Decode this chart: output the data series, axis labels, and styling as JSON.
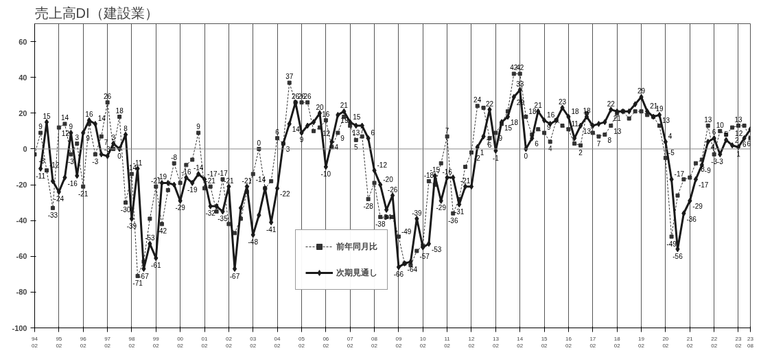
{
  "chart_data": {
    "type": "line",
    "title": "売上高DI（建設業）",
    "x": [
      "1994-02",
      "1994-05",
      "1994-08",
      "1994-11",
      "1995-02",
      "1995-05",
      "1995-08",
      "1995-11",
      "1996-02",
      "1996-05",
      "1996-08",
      "1996-11",
      "1997-02",
      "1997-05",
      "1997-08",
      "1997-11",
      "1998-02",
      "1998-05",
      "1998-08",
      "1998-11",
      "1999-02",
      "1999-05",
      "1999-08",
      "1999-11",
      "2000-02",
      "2000-05",
      "2000-08",
      "2000-11",
      "2001-02",
      "2001-05",
      "2001-08",
      "2001-11",
      "2002-02",
      "2002-05",
      "2002-08",
      "2002-11",
      "2003-02",
      "2003-05",
      "2003-08",
      "2003-11",
      "2004-02",
      "2004-05",
      "2004-08",
      "2004-11",
      "2005-02",
      "2005-05",
      "2005-08",
      "2005-11",
      "2006-02",
      "2006-05",
      "2006-08",
      "2006-11",
      "2007-02",
      "2007-05",
      "2007-08",
      "2007-11",
      "2008-02",
      "2008-05",
      "2008-08",
      "2008-11",
      "2009-02",
      "2009-05",
      "2009-08",
      "2009-11",
      "2010-02",
      "2010-05",
      "2010-08",
      "2010-11",
      "2011-02",
      "2011-05",
      "2011-08",
      "2011-11",
      "2012-02",
      "2012-05",
      "2012-08",
      "2012-11",
      "2013-02",
      "2013-05",
      "2013-08",
      "2013-11",
      "2014-02",
      "2014-05",
      "2014-08",
      "2014-11",
      "2015-02",
      "2015-05",
      "2015-08",
      "2015-11",
      "2016-02",
      "2016-05",
      "2016-08",
      "2016-11",
      "2017-02",
      "2017-05",
      "2017-08",
      "2017-11",
      "2018-02",
      "2018-05",
      "2018-08",
      "2018-11",
      "2019-02",
      "2019-05",
      "2019-08",
      "2019-11",
      "2020-02",
      "2020-05",
      "2020-08",
      "2020-11",
      "2021-02",
      "2021-05",
      "2021-08",
      "2021-11",
      "2022-02",
      "2022-05",
      "2022-08",
      "2022-11",
      "2023-02",
      "2023-05",
      "2023-08"
    ],
    "series": [
      {
        "name": "前年同月比",
        "color": "#333333",
        "marker": "square",
        "line_style": "dashed",
        "value_labels": [
          "-3",
          "9",
          "-12",
          "-33",
          "12",
          "14",
          "-3",
          "3",
          "-21",
          null,
          "-3",
          "7",
          "26",
          null,
          "18",
          "-30",
          "-14",
          "-71",
          null,
          null,
          "-21",
          "-42",
          null,
          "-8",
          null,
          null,
          null,
          "9",
          null,
          "-21",
          null,
          "-17",
          null,
          null,
          null,
          null,
          "-14",
          "0",
          null,
          null,
          "6",
          null,
          "37",
          null,
          "26",
          "26",
          null,
          "12",
          "16",
          null,
          "9",
          null,
          null,
          "5",
          "7",
          "-28",
          null,
          "-38",
          null,
          null,
          "-49",
          null,
          null,
          "-57",
          null,
          "-18",
          null,
          null,
          "7",
          "-36",
          null,
          null,
          "-2",
          "24",
          null,
          "6",
          "9",
          null,
          null,
          "42",
          "42",
          "18",
          null,
          null,
          "9",
          "4",
          null,
          null,
          "11",
          null,
          "2",
          null,
          null,
          "7",
          "8",
          "13",
          null,
          null,
          null,
          null,
          null,
          null,
          null,
          "13",
          "-5",
          "-49",
          null,
          null,
          null,
          "-8",
          null,
          "13",
          "-3",
          "10",
          null,
          "12",
          "13",
          null,
          "6"
        ],
        "values": [
          -3,
          9,
          -12,
          -33,
          12,
          14,
          -3,
          3,
          -21,
          14,
          -3,
          7,
          26,
          0,
          18,
          -30,
          -14,
          -71,
          -63,
          -39,
          -21,
          -42,
          -23,
          -8,
          -19,
          -9,
          -6,
          9,
          -22,
          -21,
          -35,
          -17,
          -42,
          -47,
          -39,
          -24,
          -14,
          0,
          -22,
          -18,
          6,
          3,
          37,
          26,
          26,
          26,
          10,
          12,
          16,
          1,
          9,
          18,
          13,
          5,
          7,
          -28,
          -19,
          -38,
          -38,
          -38,
          -49,
          -64,
          -65,
          -57,
          -54,
          -18,
          -20,
          -8,
          7,
          -36,
          -28,
          -10,
          -2,
          24,
          23,
          6,
          9,
          14,
          21,
          42,
          42,
          18,
          8,
          11,
          9,
          4,
          16,
          13,
          11,
          3,
          2,
          20,
          9,
          7,
          8,
          13,
          20,
          21,
          17,
          21,
          21,
          19,
          18,
          13,
          -5,
          -49,
          -26,
          -17,
          -16,
          -8,
          -6,
          13,
          -3,
          10,
          8,
          12,
          13,
          13,
          6
        ]
      },
      {
        "name": "次期見通し",
        "color": "#1a1a1a",
        "marker": "diamond",
        "line_style": "solid",
        "value_labels": [
          null,
          "-11",
          "15",
          null,
          "-24",
          "-16",
          "9",
          null,
          "9",
          "16",
          "14",
          "-3",
          null,
          "3",
          "0",
          "8",
          "-39",
          "-11",
          "-67",
          "-53",
          "-61",
          "-19",
          null,
          null,
          "-29",
          "-16",
          "-19",
          "-14",
          "-17",
          "-32",
          null,
          "-35",
          "-21",
          "-67",
          null,
          "-21",
          "-48",
          null,
          null,
          "-41",
          "-22",
          "3",
          "14",
          "26",
          "9",
          null,
          null,
          "20",
          "-10",
          "4",
          "19",
          "21",
          "15",
          "13",
          null,
          "6",
          "-12",
          "-20",
          "-34",
          "-26",
          "-66",
          "-64",
          null,
          "-39",
          null,
          "-53",
          "-15",
          "-29",
          "-16",
          null,
          "-31",
          "-21",
          null,
          "1",
          "7",
          "22",
          "-1",
          "15",
          "18",
          "29",
          "33",
          "0",
          "6",
          "21",
          "16",
          null,
          null,
          "23",
          "18",
          null,
          "13",
          "18",
          null,
          null,
          null,
          "22",
          "21",
          null,
          null,
          null,
          "29",
          "21",
          null,
          "19",
          "4",
          "-17",
          "-56",
          "-36",
          "-29",
          "-17",
          "-9",
          "4",
          "6",
          "-3",
          "5",
          "2",
          "1",
          "6",
          null
        ],
        "values": [
          null,
          -11,
          15,
          -18,
          -24,
          -16,
          9,
          -15,
          9,
          16,
          14,
          -3,
          -4,
          3,
          0,
          8,
          -39,
          -11,
          -67,
          -53,
          -61,
          -19,
          -19,
          -20,
          -29,
          -16,
          -19,
          -14,
          -17,
          -32,
          -32,
          -35,
          -21,
          -67,
          -33,
          -21,
          -48,
          -37,
          -22,
          -41,
          -22,
          3,
          14,
          26,
          9,
          13,
          15,
          20,
          -10,
          4,
          19,
          21,
          15,
          13,
          13,
          6,
          -12,
          -20,
          -34,
          -26,
          -66,
          -64,
          -63,
          -39,
          -55,
          -53,
          -15,
          -29,
          -16,
          -16,
          -31,
          -21,
          -21,
          1,
          7,
          22,
          -1,
          15,
          18,
          29,
          33,
          0,
          6,
          21,
          16,
          14,
          16,
          23,
          18,
          6,
          13,
          18,
          13,
          14,
          15,
          22,
          21,
          21,
          21,
          25,
          29,
          21,
          18,
          19,
          4,
          -17,
          -56,
          -36,
          -29,
          -17,
          -9,
          4,
          6,
          -3,
          5,
          2,
          1,
          6,
          11
        ]
      }
    ],
    "xlim": [
      "1994-02",
      "2023-08"
    ],
    "xticks": [
      {
        "value": "1994-02",
        "label": "94\n02"
      },
      {
        "value": "1995-02",
        "label": "95\n02"
      },
      {
        "value": "1996-02",
        "label": "96\n02"
      },
      {
        "value": "1997-02",
        "label": "97\n02"
      },
      {
        "value": "1998-02",
        "label": "98\n02"
      },
      {
        "value": "1999-02",
        "label": "99\n02"
      },
      {
        "value": "2000-02",
        "label": "00\n02"
      },
      {
        "value": "2001-02",
        "label": "01\n02"
      },
      {
        "value": "2002-02",
        "label": "02\n02"
      },
      {
        "value": "2003-02",
        "label": "03\n02"
      },
      {
        "value": "2004-02",
        "label": "04\n02"
      },
      {
        "value": "2005-02",
        "label": "05\n02"
      },
      {
        "value": "2006-02",
        "label": "06\n02"
      },
      {
        "value": "2007-02",
        "label": "07\n02"
      },
      {
        "value": "2008-02",
        "label": "08\n02"
      },
      {
        "value": "2009-02",
        "label": "09\n02"
      },
      {
        "value": "2010-02",
        "label": "10\n02"
      },
      {
        "value": "2011-02",
        "label": "11\n02"
      },
      {
        "value": "2012-02",
        "label": "12\n02"
      },
      {
        "value": "2013-02",
        "label": "13\n02"
      },
      {
        "value": "2014-02",
        "label": "14\n02"
      },
      {
        "value": "2015-02",
        "label": "15\n02"
      },
      {
        "value": "2016-02",
        "label": "16\n02"
      },
      {
        "value": "2017-02",
        "label": "17\n02"
      },
      {
        "value": "2018-02",
        "label": "18\n02"
      },
      {
        "value": "2019-02",
        "label": "19\n02"
      },
      {
        "value": "2020-02",
        "label": "20\n02"
      },
      {
        "value": "2021-02",
        "label": "21\n02"
      },
      {
        "value": "2022-02",
        "label": "22\n02"
      },
      {
        "value": "2023-02",
        "label": "23\n02"
      },
      {
        "value": "2023-08",
        "label": "23\n08"
      }
    ],
    "ylim": [
      -100,
      70
    ],
    "yticks": [
      -100,
      -80,
      -60,
      -40,
      -20,
      0,
      20,
      40,
      60
    ],
    "ref_lines": [
      {
        "axis": "y",
        "value": 0,
        "color": "#888888"
      }
    ],
    "grid": "x",
    "legend": "bottom"
  }
}
